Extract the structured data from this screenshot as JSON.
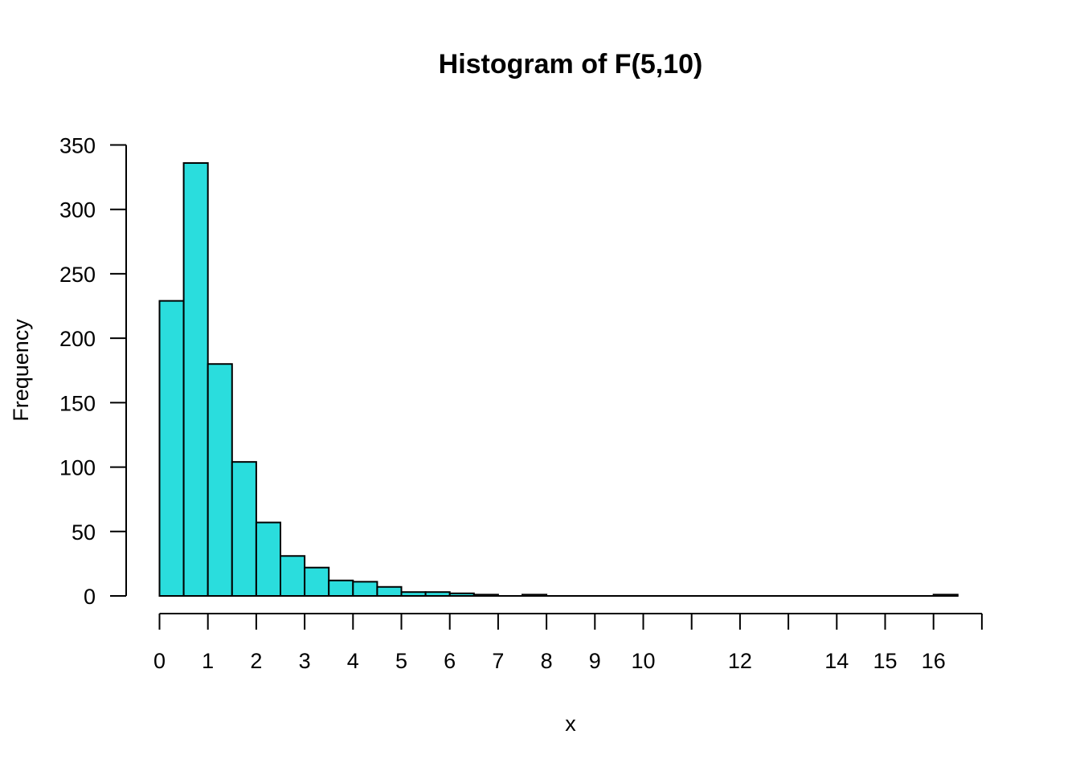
{
  "chart_data": {
    "type": "bar",
    "title": "Histogram of F(5,10)",
    "xlabel": "x",
    "ylabel": "Frequency",
    "bar_color": "#2ADDDD",
    "bin_width": 0.5,
    "xlim": [
      0,
      17
    ],
    "ylim": [
      0,
      350
    ],
    "x_tick_labels": [
      {
        "label": "0",
        "value": 0
      },
      {
        "label": "1",
        "value": 1
      },
      {
        "label": "2",
        "value": 2
      },
      {
        "label": "3",
        "value": 3
      },
      {
        "label": "4",
        "value": 4
      },
      {
        "label": "5",
        "value": 5
      },
      {
        "label": "6",
        "value": 6
      },
      {
        "label": "7",
        "value": 7
      },
      {
        "label": "8",
        "value": 8
      },
      {
        "label": "9",
        "value": 9
      },
      {
        "label": "10",
        "value": 10
      },
      {
        "label": "12",
        "value": 12
      },
      {
        "label": "14",
        "value": 14
      },
      {
        "label": "15",
        "value": 15
      },
      {
        "label": "16",
        "value": 16
      }
    ],
    "x_ticks": [
      0,
      1,
      2,
      3,
      4,
      5,
      6,
      7,
      8,
      9,
      10,
      11,
      12,
      13,
      14,
      15,
      16,
      17
    ],
    "y_ticks": [
      "0",
      "50",
      "100",
      "150",
      "200",
      "250",
      "300",
      "350"
    ],
    "bins": [
      {
        "start": 0.0,
        "end": 0.5,
        "count": 229
      },
      {
        "start": 0.5,
        "end": 1.0,
        "count": 336
      },
      {
        "start": 1.0,
        "end": 1.5,
        "count": 180
      },
      {
        "start": 1.5,
        "end": 2.0,
        "count": 104
      },
      {
        "start": 2.0,
        "end": 2.5,
        "count": 57
      },
      {
        "start": 2.5,
        "end": 3.0,
        "count": 31
      },
      {
        "start": 3.0,
        "end": 3.5,
        "count": 22
      },
      {
        "start": 3.5,
        "end": 4.0,
        "count": 12
      },
      {
        "start": 4.0,
        "end": 4.5,
        "count": 11
      },
      {
        "start": 4.5,
        "end": 5.0,
        "count": 7
      },
      {
        "start": 5.0,
        "end": 5.5,
        "count": 3
      },
      {
        "start": 5.5,
        "end": 6.0,
        "count": 3
      },
      {
        "start": 6.0,
        "end": 6.5,
        "count": 2
      },
      {
        "start": 6.5,
        "end": 7.0,
        "count": 1
      },
      {
        "start": 7.0,
        "end": 7.5,
        "count": 0
      },
      {
        "start": 7.5,
        "end": 8.0,
        "count": 1
      },
      {
        "start": 8.0,
        "end": 8.5,
        "count": 0
      },
      {
        "start": 8.5,
        "end": 9.0,
        "count": 0
      },
      {
        "start": 9.0,
        "end": 9.5,
        "count": 0
      },
      {
        "start": 9.5,
        "end": 10.0,
        "count": 0
      },
      {
        "start": 10.0,
        "end": 10.5,
        "count": 0
      },
      {
        "start": 10.5,
        "end": 11.0,
        "count": 0
      },
      {
        "start": 11.0,
        "end": 11.5,
        "count": 0
      },
      {
        "start": 11.5,
        "end": 12.0,
        "count": 0
      },
      {
        "start": 12.0,
        "end": 12.5,
        "count": 0
      },
      {
        "start": 12.5,
        "end": 13.0,
        "count": 0
      },
      {
        "start": 13.0,
        "end": 13.5,
        "count": 0
      },
      {
        "start": 13.5,
        "end": 14.0,
        "count": 0
      },
      {
        "start": 14.0,
        "end": 14.5,
        "count": 0
      },
      {
        "start": 14.5,
        "end": 15.0,
        "count": 0
      },
      {
        "start": 15.0,
        "end": 15.5,
        "count": 0
      },
      {
        "start": 15.5,
        "end": 16.0,
        "count": 0
      },
      {
        "start": 16.0,
        "end": 16.5,
        "count": 1
      }
    ]
  }
}
